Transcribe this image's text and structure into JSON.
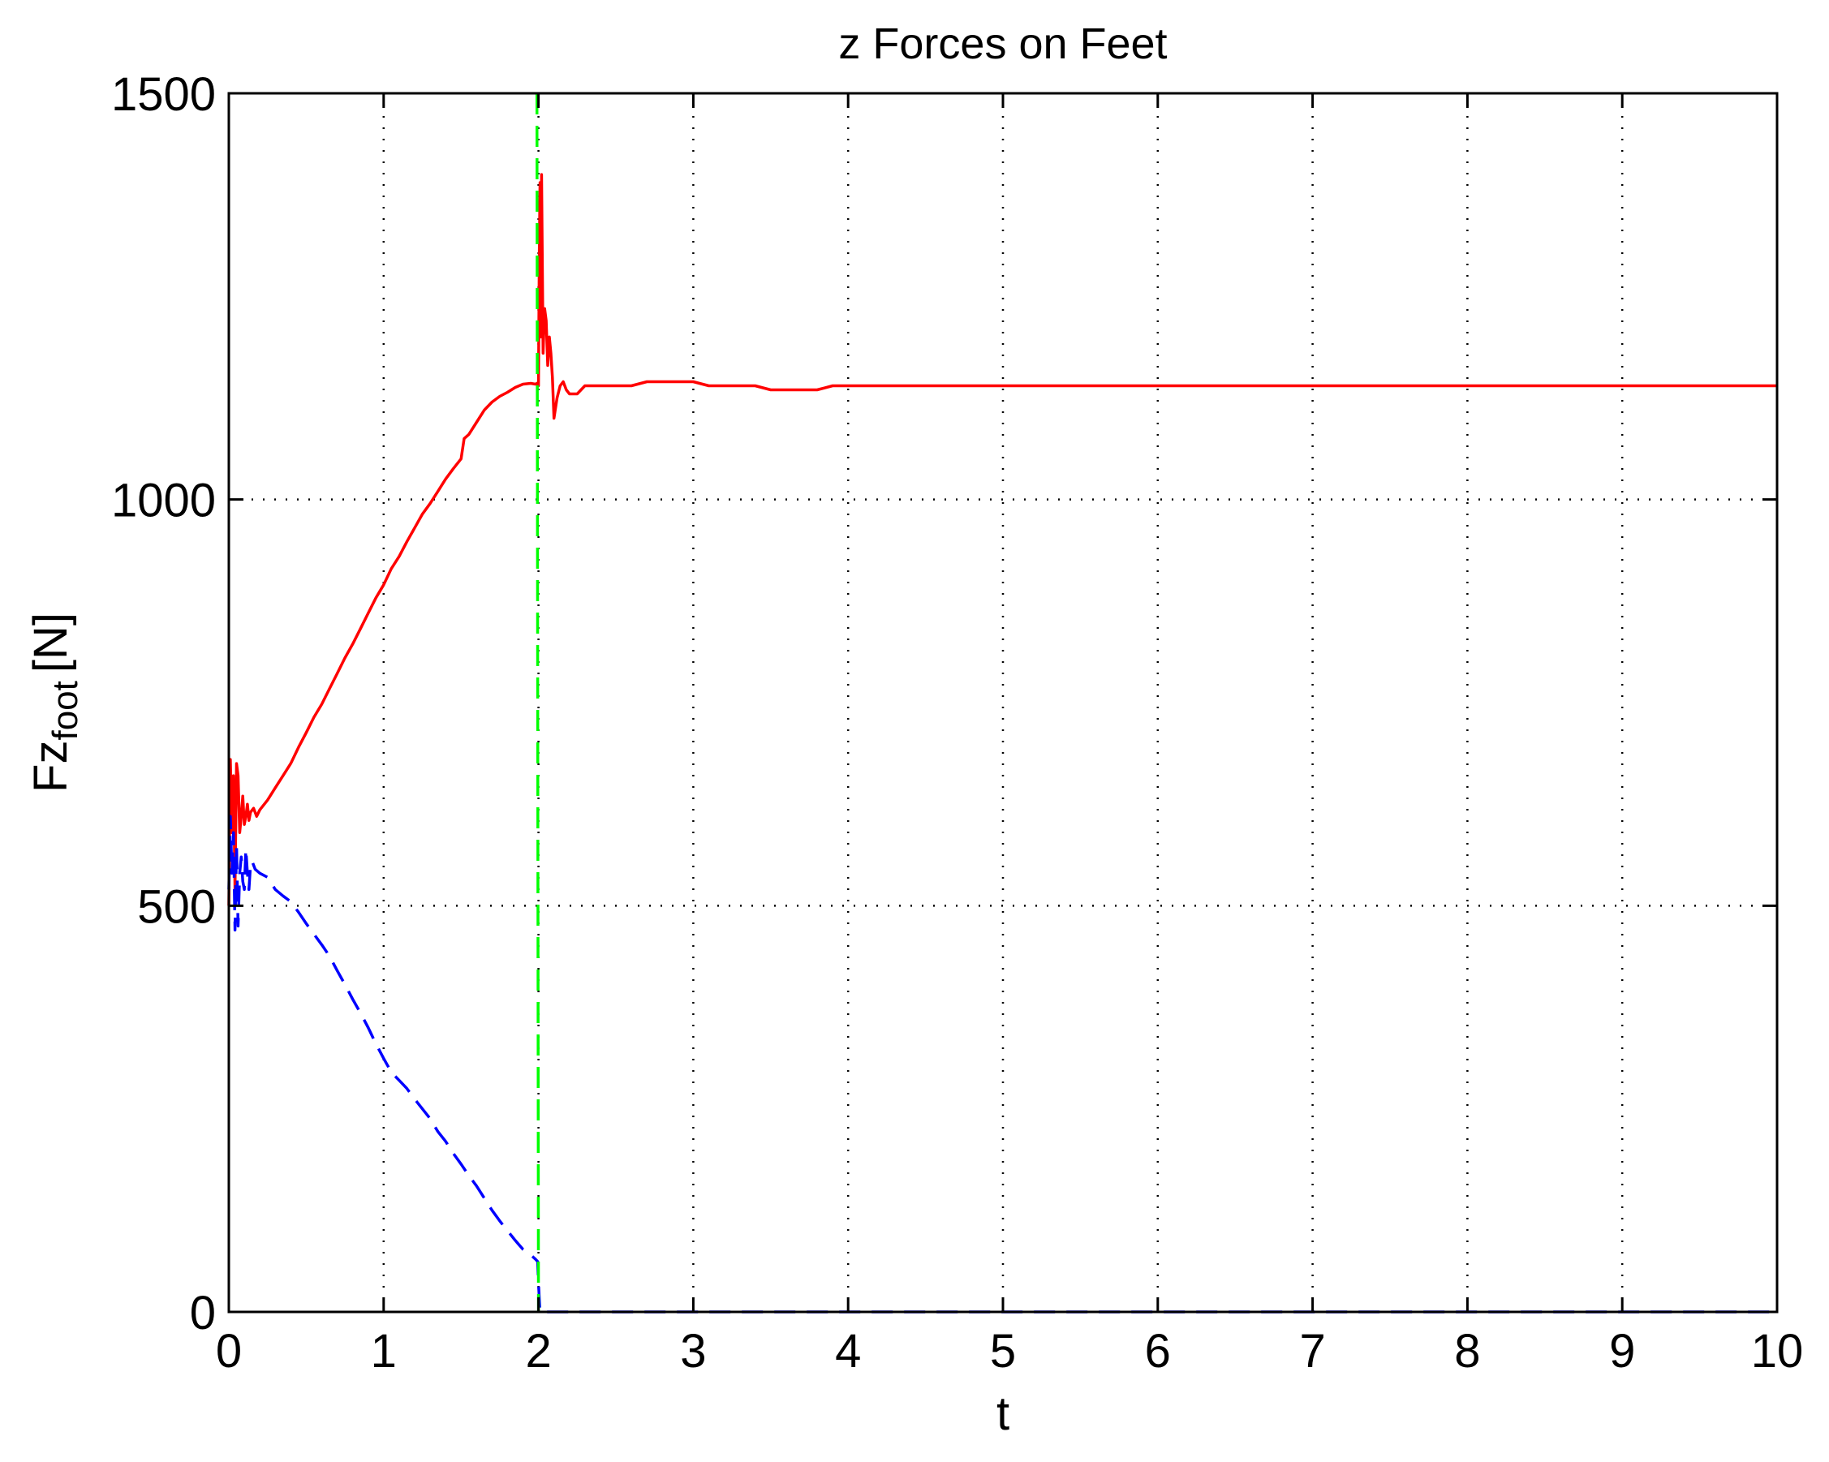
{
  "chart_data": {
    "type": "line",
    "title": "z Forces on Feet",
    "xlabel": "t",
    "ylabel": {
      "main": "Fz",
      "subscript": "foot",
      "unit": "[N]"
    },
    "xlim": [
      0,
      10
    ],
    "ylim": [
      0,
      1500
    ],
    "xticks": [
      0,
      1,
      2,
      3,
      4,
      5,
      6,
      7,
      8,
      9,
      10
    ],
    "yticks": [
      0,
      500,
      1000,
      1500
    ],
    "grid": true,
    "legend": "none",
    "series": [
      {
        "color": "#ff0000",
        "style": "solid",
        "x": [
          0.0,
          0.01,
          0.02,
          0.03,
          0.04,
          0.05,
          0.06,
          0.07,
          0.08,
          0.09,
          0.1,
          0.11,
          0.12,
          0.13,
          0.14,
          0.16,
          0.18,
          0.2,
          0.25,
          0.3,
          0.35,
          0.4,
          0.45,
          0.5,
          0.55,
          0.6,
          0.65,
          0.7,
          0.75,
          0.8,
          0.85,
          0.9,
          0.95,
          1.0,
          1.05,
          1.1,
          1.15,
          1.2,
          1.25,
          1.3,
          1.35,
          1.4,
          1.45,
          1.5,
          1.52,
          1.55,
          1.6,
          1.65,
          1.7,
          1.75,
          1.8,
          1.85,
          1.9,
          1.95,
          1.98,
          1.99,
          2.0,
          2.005,
          2.01,
          2.015,
          2.02,
          2.03,
          2.04,
          2.05,
          2.06,
          2.07,
          2.08,
          2.09,
          2.1,
          2.12,
          2.14,
          2.16,
          2.18,
          2.2,
          2.25,
          2.3,
          2.35,
          2.4,
          2.5,
          2.6,
          2.7,
          2.8,
          2.9,
          3.0,
          3.1,
          3.2,
          3.3,
          3.4,
          3.5,
          3.6,
          3.7,
          3.8,
          3.9,
          4.0,
          5.0,
          6.0,
          7.0,
          8.0,
          9.0,
          10.0
        ],
        "y": [
          500,
          680,
          590,
          660,
          520,
          675,
          660,
          590,
          610,
          635,
          600,
          610,
          625,
          605,
          615,
          620,
          610,
          618,
          630,
          645,
          660,
          675,
          695,
          713,
          732,
          748,
          767,
          786,
          805,
          822,
          841,
          860,
          879,
          895,
          915,
          930,
          948,
          965,
          982,
          995,
          1010,
          1025,
          1038,
          1050,
          1075,
          1080,
          1095,
          1110,
          1120,
          1127,
          1132,
          1138,
          1142,
          1143,
          1142,
          1143,
          1140,
          1300,
          1390,
          1200,
          1400,
          1180,
          1235,
          1220,
          1165,
          1200,
          1180,
          1150,
          1100,
          1125,
          1140,
          1145,
          1135,
          1130,
          1130,
          1140,
          1140,
          1140,
          1140,
          1140,
          1145,
          1145,
          1145,
          1145,
          1140,
          1140,
          1140,
          1140,
          1135,
          1135,
          1135,
          1135,
          1140,
          1140,
          1140,
          1140,
          1140,
          1140,
          1140,
          1140
        ]
      },
      {
        "color": "#0000ff",
        "style": "dashed",
        "x": [
          0.0,
          0.01,
          0.02,
          0.03,
          0.04,
          0.05,
          0.06,
          0.07,
          0.08,
          0.09,
          0.1,
          0.11,
          0.12,
          0.13,
          0.14,
          0.15,
          0.17,
          0.2,
          0.25,
          0.3,
          0.35,
          0.4,
          0.45,
          0.5,
          0.55,
          0.6,
          0.65,
          0.7,
          0.75,
          0.8,
          0.85,
          0.9,
          0.95,
          1.0,
          1.05,
          1.1,
          1.15,
          1.2,
          1.25,
          1.3,
          1.35,
          1.4,
          1.45,
          1.5,
          1.55,
          1.6,
          1.65,
          1.7,
          1.75,
          1.8,
          1.85,
          1.9,
          1.95,
          1.98,
          1.995,
          2.0,
          2.01,
          3.0,
          4.0,
          5.0,
          6.0,
          7.0,
          8.0,
          9.0,
          10.0
        ],
        "y": [
          520,
          610,
          540,
          590,
          470,
          575,
          475,
          540,
          560,
          530,
          520,
          570,
          540,
          520,
          550,
          555,
          545,
          540,
          535,
          520,
          512,
          505,
          492,
          478,
          465,
          452,
          438,
          420,
          403,
          385,
          368,
          350,
          330,
          312,
          295,
          285,
          275,
          262,
          250,
          238,
          222,
          210,
          195,
          182,
          168,
          155,
          140,
          125,
          112,
          100,
          88,
          77,
          70,
          65,
          62,
          35,
          0,
          0,
          0,
          0,
          0,
          0,
          0,
          0,
          0
        ]
      },
      {
        "color": "#00ff00",
        "style": "dashed",
        "x": [
          1.99,
          2.0
        ],
        "y": [
          1500,
          0
        ]
      }
    ]
  }
}
